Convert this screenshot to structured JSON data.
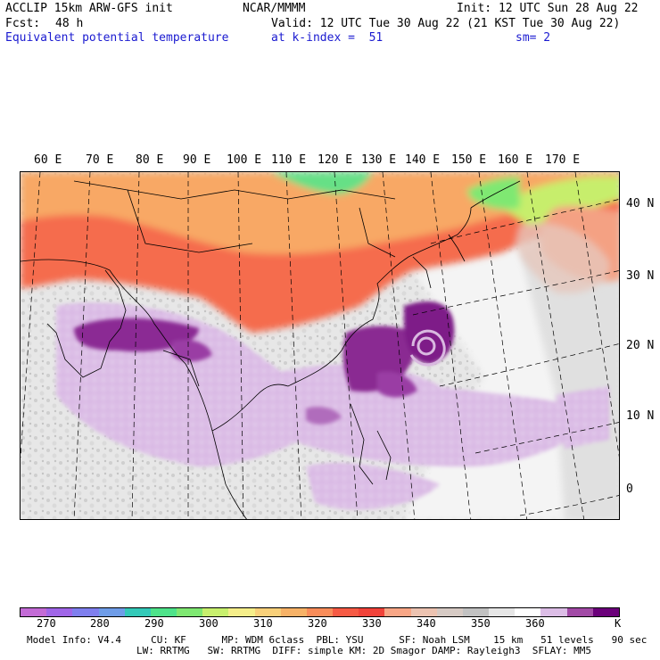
{
  "header": {
    "model": "ACCLIP 15km ARW-GFS init",
    "center": "NCAR/MMMM",
    "init": "Init: 12 UTC Sun 28 Aug 22",
    "fcst_label": "Fcst:",
    "fcst_value": "48 h",
    "valid": "Valid: 12 UTC Tue 30 Aug 22 (21 KST Tue 30 Aug 22)",
    "field": "Equivalent potential temperature",
    "level": "at k-index =  51",
    "smoothing": "sm= 2"
  },
  "map": {
    "lon_labels": [
      "60 E",
      "70 E",
      "80 E",
      "90 E",
      "100 E",
      "110 E",
      "120 E",
      "130 E",
      "140 E",
      "150 E",
      "160 E",
      "170 E"
    ],
    "lat_labels": [
      "40 N",
      "30 N",
      "20 N",
      "10 N",
      "0"
    ]
  },
  "colorbar": {
    "colors": [
      "#c36bd6",
      "#a066e8",
      "#7f7fee",
      "#6f9de8",
      "#33c9b8",
      "#4ee38a",
      "#7fe872",
      "#c8f06e",
      "#f5ee8a",
      "#f8d07a",
      "#f7b267",
      "#f98d5a",
      "#f65a44",
      "#f1433a",
      "#f8a686",
      "#ecc3b1",
      "#d6cac4",
      "#c2c2c2",
      "#e6e6e6",
      "#ffffff",
      "#dcbde6",
      "#a24aa6",
      "#6b007a"
    ],
    "ticks": [
      "270",
      "280",
      "290",
      "300",
      "310",
      "320",
      "330",
      "340",
      "350",
      "360"
    ],
    "unit": "K"
  },
  "footer": {
    "line1": "Model Info: V4.4     CU: KF      MP: WDM 6class  PBL: YSU      SF: Noah LSM    15 km   51 levels   90 sec",
    "line2": "LW: RRTMG   SW: RRTMG  DIFF: simple KM: 2D Smagor DAMP: Rayleigh3  SFLAY: MM5"
  }
}
